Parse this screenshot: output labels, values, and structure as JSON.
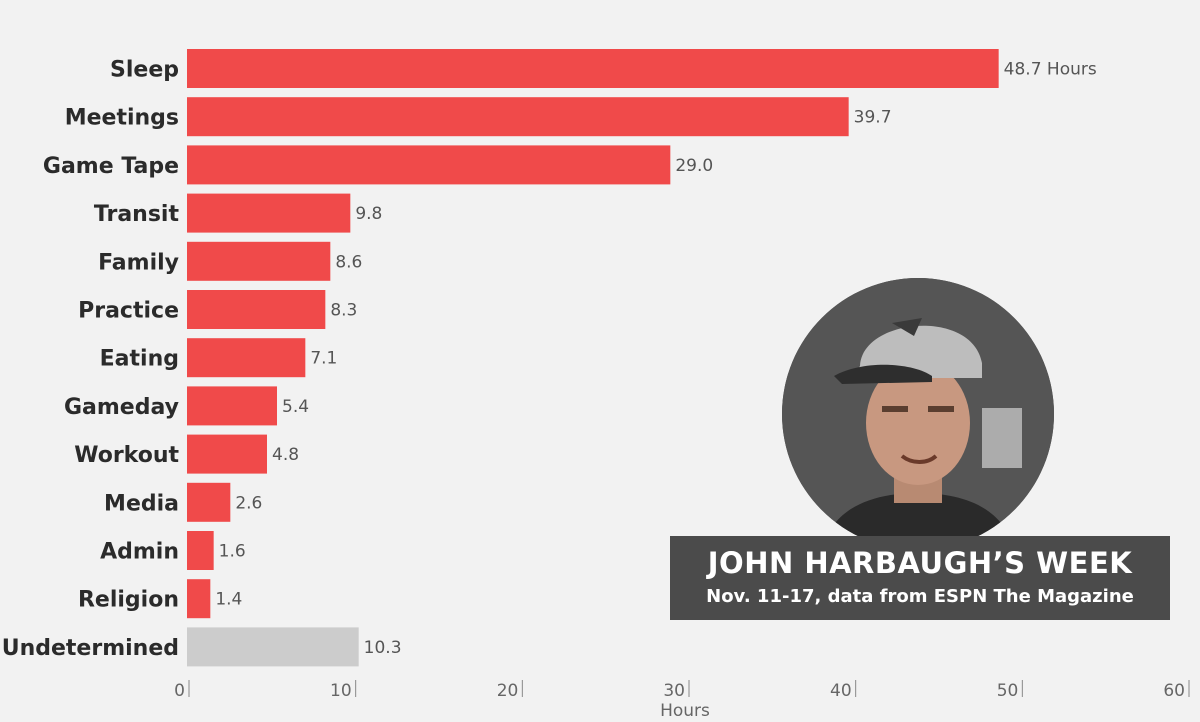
{
  "chart_data": {
    "type": "bar",
    "orientation": "horizontal",
    "categories": [
      "Sleep",
      "Meetings",
      "Game Tape",
      "Transit",
      "Family",
      "Practice",
      "Eating",
      "Gameday",
      "Workout",
      "Media",
      "Admin",
      "Religion",
      "Undetermined"
    ],
    "values": [
      48.7,
      39.7,
      29.0,
      9.8,
      8.6,
      8.3,
      7.1,
      5.4,
      4.8,
      2.6,
      1.6,
      1.4,
      10.3
    ],
    "value_labels": [
      "48.7 Hours",
      "39.7",
      "29.0",
      "9.8",
      "8.6",
      "8.3",
      "7.1",
      "5.4",
      "4.8",
      "2.6",
      "1.6",
      "1.4",
      "10.3"
    ],
    "xlim": [
      0,
      60
    ],
    "xticks": [
      0,
      10,
      20,
      30,
      40,
      50,
      60
    ],
    "xtick_labels": [
      "0",
      "10",
      "20",
      "30",
      "40",
      "50",
      "60"
    ],
    "xlabel": "Hours",
    "ylabel": "",
    "grid": false,
    "legend": "none",
    "colors": {
      "main": "#f04a4a",
      "undetermined": "#cccccc"
    }
  },
  "caption": {
    "title": "JOHN HARBAUGH’S WEEK",
    "subtitle": "Nov. 11-17, data from ESPN The Magazine"
  },
  "photo": {
    "icon": "coach-portrait-photo"
  }
}
